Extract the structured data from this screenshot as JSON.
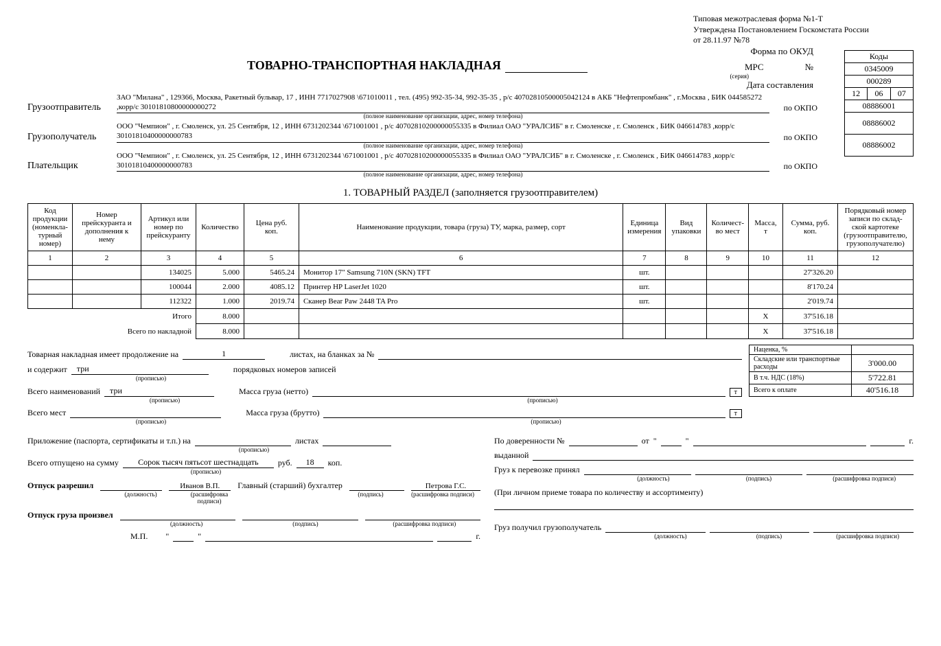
{
  "meta": {
    "form_type": "Типовая межотраслевая форма №1-Т",
    "approved": "Утверждена Постановлением Госкомстата России",
    "approved_date": "от 28.11.97 №78"
  },
  "codes": {
    "header": "Коды",
    "okud_label": "Форма по ОКУД",
    "okud": "0345009",
    "num_label": "№",
    "mpc_label": "МРС",
    "num": "000289",
    "series_label": "(серия)",
    "date_label": "Дата составления",
    "date_d": "12",
    "date_m": "06",
    "date_y": "07",
    "okpo_label": "по ОКПО",
    "okpo1": "08886001",
    "okpo2": "08886002",
    "okpo3": "08886002"
  },
  "title": "ТОВАРНО-ТРАНСПОРТНАЯ НАКЛАДНАЯ",
  "parties": {
    "sender_label": "Грузоотправитель",
    "sender": "ЗАО \"Милана\" , 129366, Москва, Ракетный бульвар, 17 , ИНН 7717027908 \\671010011 , тел. (495) 992-35-34, 992-35-35 , р/с 40702810500005042124 в АКБ \"Нефтепромбанк\" , г.Москва , БИК 044585272 ,корр/с 30101810800000000272",
    "receiver_label": "Грузополучатель",
    "receiver": "ООО \"Чемпион\" , г. Смоленск, ул. 25 Сентября, 12 , ИНН 6731202344 \\671001001 , р/с 40702810200000055335 в Филиал ОАО \"УРАЛСИБ\" в г. Смоленске , г. Смоленск , БИК 046614783 ,корр/с 30101810400000000783",
    "payer_label": "Плательщик",
    "payer": "ООО \"Чемпион\" , г. Смоленск, ул. 25 Сентября, 12 , ИНН 6731202344 \\671001001 , р/с 40702810200000055335 в Филиал ОАО \"УРАЛСИБ\" в г. Смоленске , г. Смоленск , БИК 046614783 ,корр/с 30101810400000000783",
    "org_note": "(полное наименование организации, адрес, номер телефона)"
  },
  "section1_title": "1. ТОВАРНЫЙ РАЗДЕЛ (заполняется грузоотправителем)",
  "columns": {
    "c1": "Код продукции (номенкла-турный номер)",
    "c2": "Номер прейскуранта и дополнения к нему",
    "c3": "Артикул или номер по прейскуранту",
    "c4": "Количество",
    "c5": "Цена руб. коп.",
    "c6": "Наименование продукции, товара (груза) ТУ, марка, размер, сорт",
    "c7": "Единица измерения",
    "c8": "Вид упаковки",
    "c9": "Количест-во мест",
    "c10": "Масса, т",
    "c11": "Сумма, руб. коп.",
    "c12": "Порядковый номер записи по склад-ской картотеке (грузоотправителю, грузополучателю)"
  },
  "colnums": [
    "1",
    "2",
    "3",
    "4",
    "5",
    "6",
    "7",
    "8",
    "9",
    "10",
    "11",
    "12"
  ],
  "rows": [
    {
      "art": "134025",
      "qty": "5.000",
      "price": "5465.24",
      "name": "Монитор 17\" Samsung 710N (SKN) TFT",
      "unit": "шт.",
      "sum": "27'326.20"
    },
    {
      "art": "100044",
      "qty": "2.000",
      "price": "4085.12",
      "name": "Принтер HP LaserJet 1020",
      "unit": "шт.",
      "sum": "8'170.24"
    },
    {
      "art": "112322",
      "qty": "1.000",
      "price": "2019.74",
      "name": "Сканер Bear Paw 2448 TA Pro",
      "unit": "шт.",
      "sum": "2'019.74"
    }
  ],
  "totals": {
    "itogo_label": "Итого",
    "itogo_qty": "8.000",
    "itogo_mass": "X",
    "itogo_sum": "37'516.18",
    "vsego_label": "Всего по накладной",
    "vsego_qty": "8.000",
    "vsego_mass": "X",
    "vsego_sum": "37'516.18"
  },
  "footer": {
    "cont_label": "Товарная накладная имеет продолжение на",
    "cont_val": "1",
    "sheets_label": "листах, на бланках за №",
    "contains_label": "и содержит",
    "contains_val": "три",
    "ordinal_label": "порядковых номеров записей",
    "names_label": "Всего наименований",
    "names_val": "три",
    "mass_net_label": "Масса груза (нетто)",
    "places_label": "Всего мест",
    "mass_gross_label": "Масса груза (брутто)",
    "propis": "(прописью)",
    "nacenka": "Наценка, %",
    "sklad": "Складские или транспортные расходы",
    "sklad_val": "3'000.00",
    "nds": "В т.ч. НДС (18%)",
    "nds_val": "5'722.81",
    "vsego_opl": "Всего к оплате",
    "vsego_opl_val": "40'516.18",
    "attach_label": "Приложение (паспорта, сертификаты и т.п.) на",
    "attach_sheets": "листах",
    "sum_label": "Всего отпущено на сумму",
    "sum_words": "Сорок тысяч пятьсот шестнадцать",
    "rub": "руб.",
    "rub_val": "18",
    "kop": "коп.",
    "release_label": "Отпуск разрешил",
    "chief_acc": "Главный (старший) бухгалтер",
    "ivanov": "Иванов В.П.",
    "petrova": "Петрова Г.С.",
    "release_done": "Отпуск груза произвел",
    "mp": "М.П.",
    "year": "г.",
    "position": "(должность)",
    "signature": "(подпись)",
    "decode": "(расшифровка подписи)",
    "dover": "По доверенности №",
    "ot": "от",
    "vydan": "выданной",
    "accepted": "Груз к перевозке принял",
    "personal": "(При личном приеме товара по количеству и ассортименту)",
    "received": "Груз получил грузополучатель",
    "t": "т"
  }
}
